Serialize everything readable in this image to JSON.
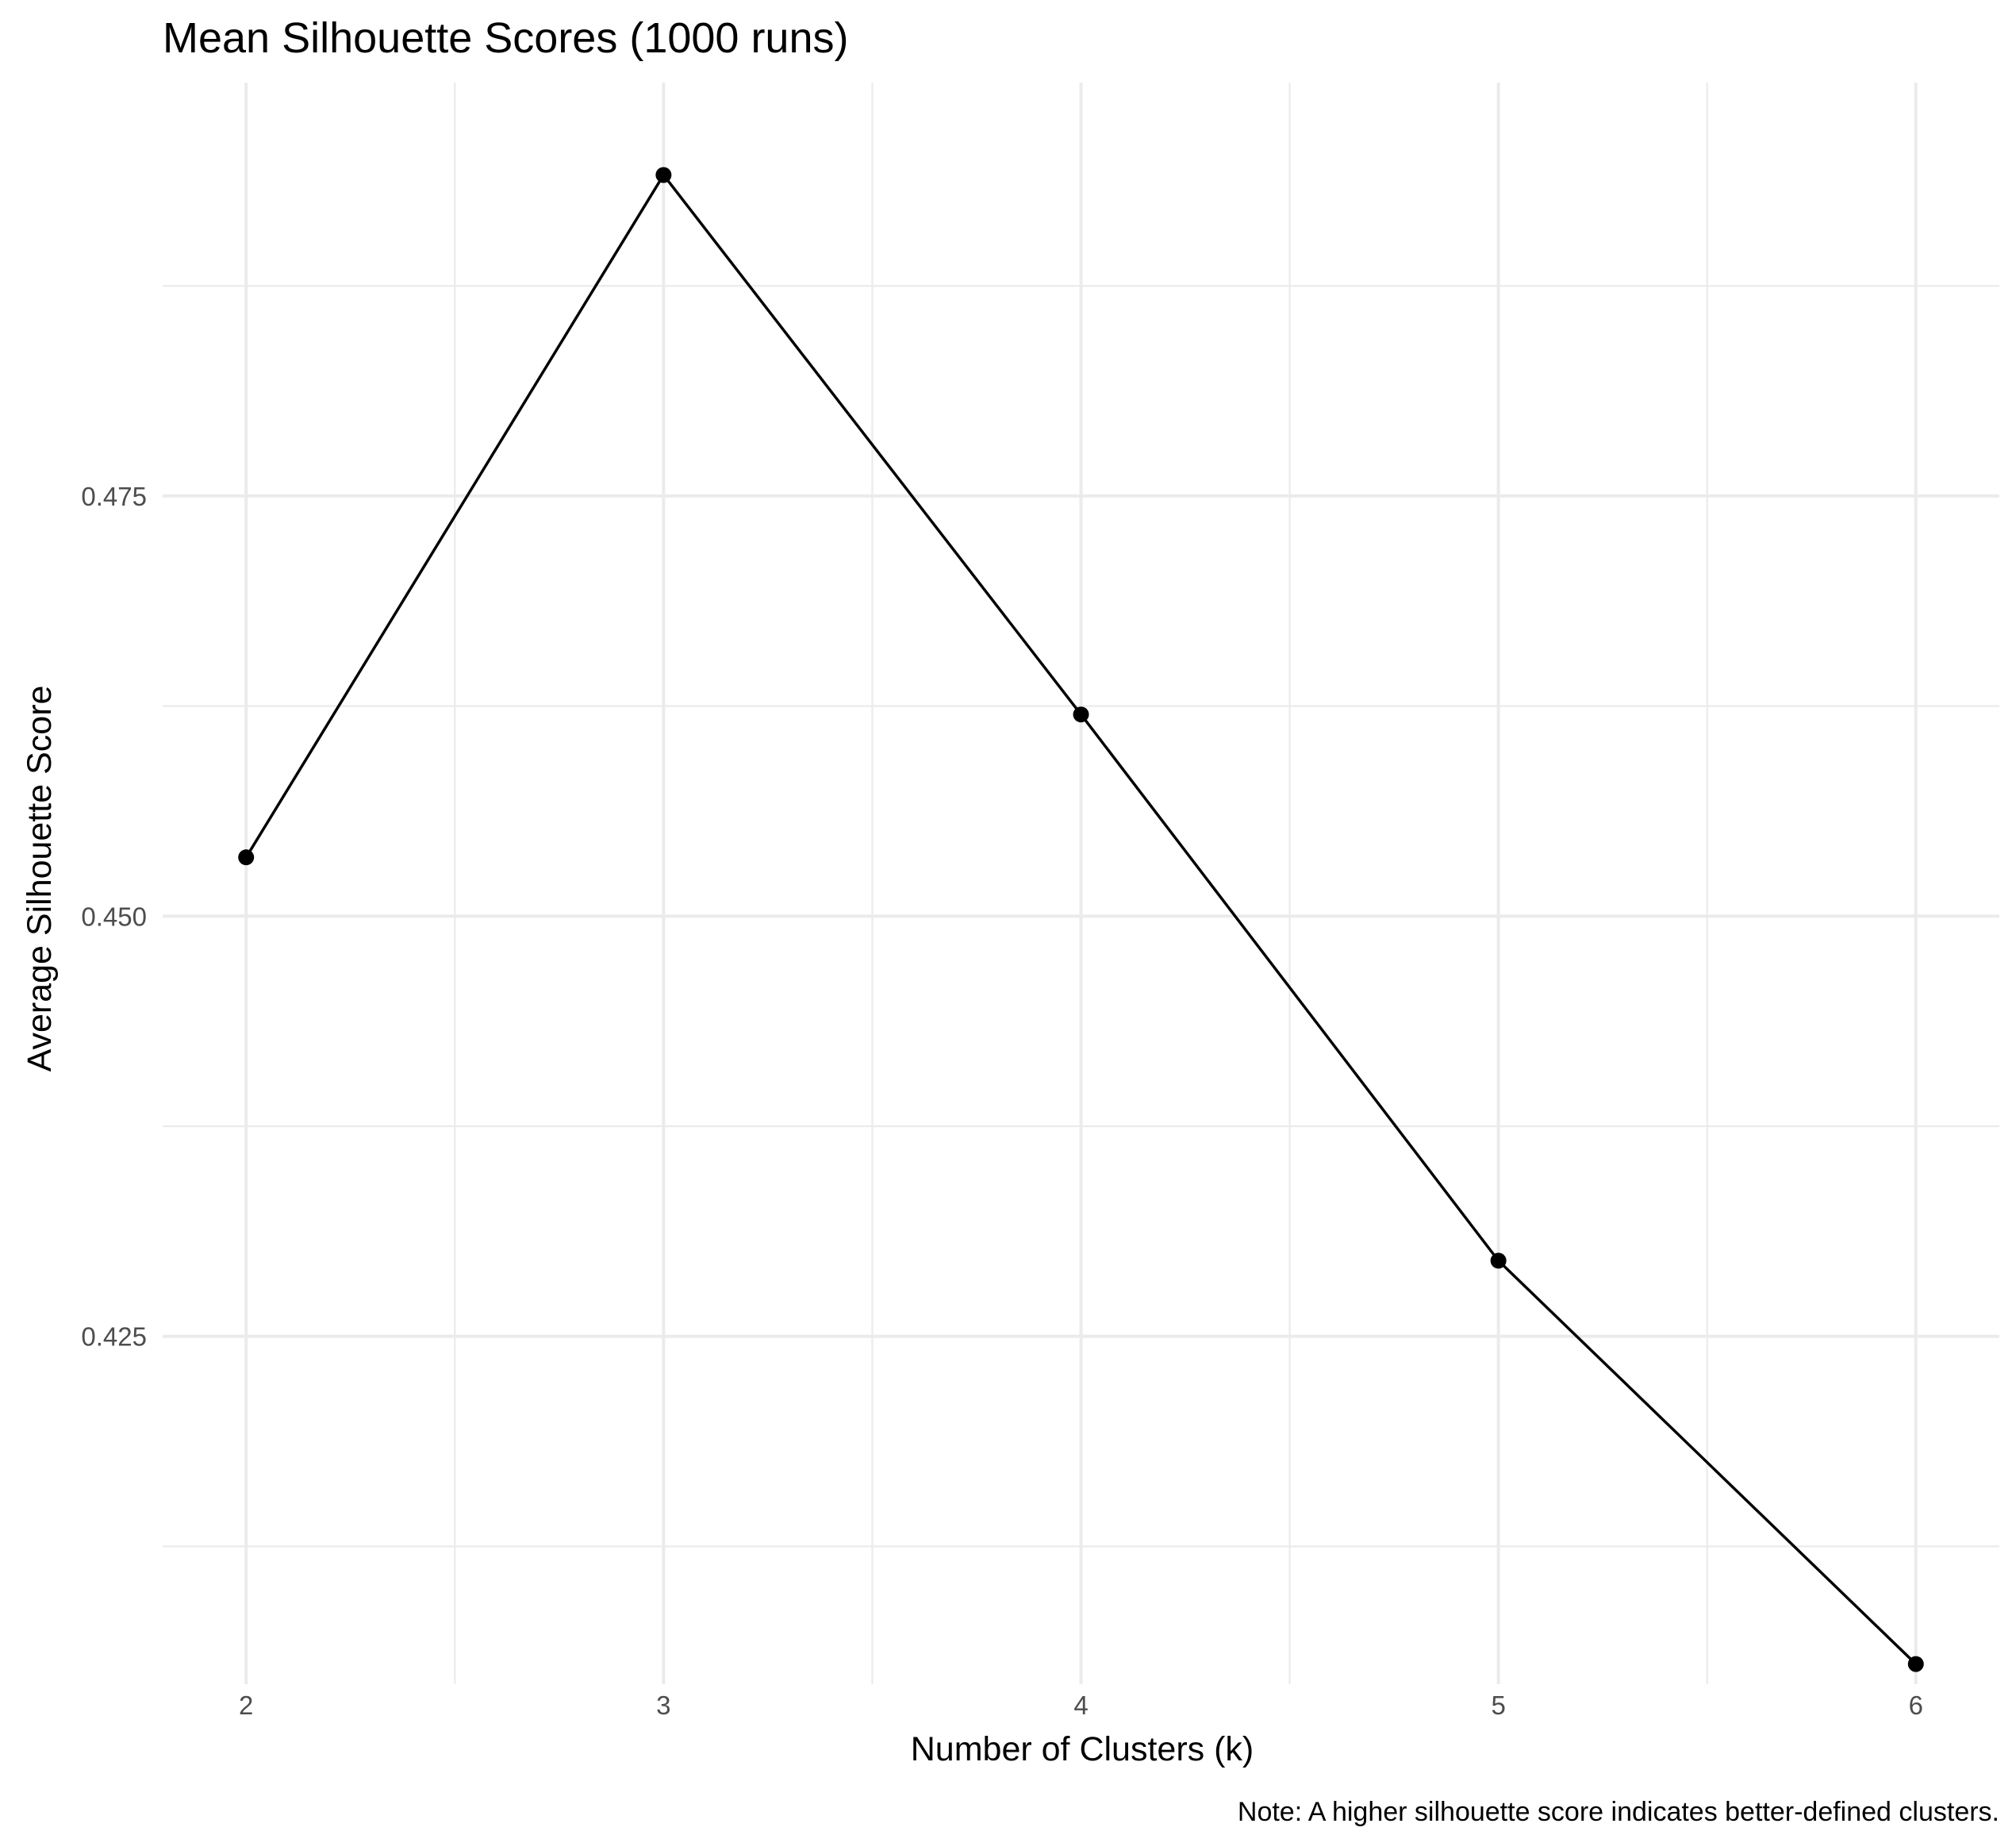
{
  "chart_data": {
    "type": "line",
    "title": "Mean Silhouette Scores (1000 runs)",
    "xlabel": "Number of Clusters (k)",
    "ylabel": "Average Silhouette Score",
    "caption": "Note: A higher silhouette score indicates better-defined clusters.",
    "x": [
      2,
      3,
      4,
      5,
      6
    ],
    "series": [
      {
        "values": [
          0.4535,
          0.4941,
          0.462,
          0.4295,
          0.4055
        ]
      }
    ],
    "x_ticks": [
      "2",
      "3",
      "4",
      "5",
      "6"
    ],
    "y_ticks": [
      "0.425",
      "0.450",
      "0.475"
    ],
    "xlim": [
      1.8,
      6.2
    ],
    "ylim": [
      0.4043,
      0.4996
    ],
    "grid": true,
    "legend": "none",
    "colors": {
      "line": "#000000",
      "points": "#000000",
      "grid": "#ebebeb",
      "background": "#ffffff"
    }
  }
}
